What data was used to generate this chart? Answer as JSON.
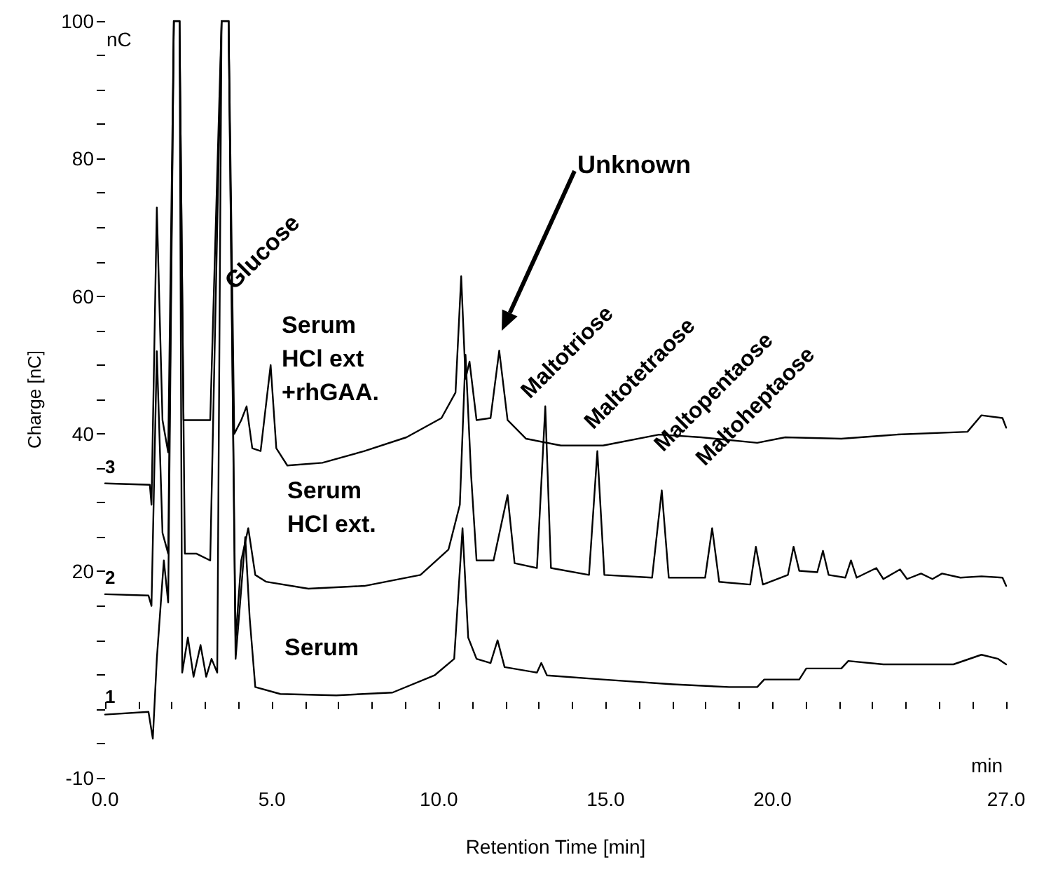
{
  "chart_data": {
    "type": "line",
    "xlabel": "Retention Time [min]",
    "ylabel": "Charge [nC]",
    "xlim": [
      0,
      27
    ],
    "ylim": [
      -10,
      100
    ],
    "xticks": [
      {
        "value": 0,
        "label": "0.0"
      },
      {
        "value": 1,
        "label": null
      },
      {
        "value": 2,
        "label": null
      },
      {
        "value": 3,
        "label": null
      },
      {
        "value": 4,
        "label": null
      },
      {
        "value": 5,
        "label": "5.0"
      },
      {
        "value": 6,
        "label": null
      },
      {
        "value": 7,
        "label": null
      },
      {
        "value": 8,
        "label": null
      },
      {
        "value": 9,
        "label": null
      },
      {
        "value": 10,
        "label": "10.0"
      },
      {
        "value": 11,
        "label": null
      },
      {
        "value": 12,
        "label": null
      },
      {
        "value": 13,
        "label": null
      },
      {
        "value": 14,
        "label": null
      },
      {
        "value": 15,
        "label": "15.0"
      },
      {
        "value": 16,
        "label": null
      },
      {
        "value": 17,
        "label": null
      },
      {
        "value": 18,
        "label": null
      },
      {
        "value": 19,
        "label": null
      },
      {
        "value": 20,
        "label": "20.0"
      },
      {
        "value": 21,
        "label": null
      },
      {
        "value": 22,
        "label": null
      },
      {
        "value": 23,
        "label": null
      },
      {
        "value": 24,
        "label": null
      },
      {
        "value": 25,
        "label": null
      },
      {
        "value": 26,
        "label": null
      },
      {
        "value": 27,
        "label": "27.0"
      }
    ],
    "yticks": [
      -10,
      {
        "value": -5,
        "label": null
      },
      {
        "value": 0,
        "label": null
      },
      {
        "value": 5,
        "label": null
      },
      {
        "value": 10,
        "label": null
      },
      {
        "value": 15,
        "label": null
      },
      20,
      {
        "value": 25,
        "label": null
      },
      {
        "value": 30,
        "label": null
      },
      {
        "value": 35,
        "label": null
      },
      40,
      {
        "value": 45,
        "label": null
      },
      {
        "value": 50,
        "label": null
      },
      {
        "value": 55,
        "label": null
      },
      60,
      {
        "value": 65,
        "label": null
      },
      {
        "value": 70,
        "label": null
      },
      {
        "value": 75,
        "label": null
      },
      80,
      {
        "value": 85,
        "label": null
      },
      {
        "value": 90,
        "label": null
      },
      {
        "value": 95,
        "label": null
      },
      100
    ],
    "marker": "none",
    "line_style": "solid",
    "series": [
      {
        "color": "#000000",
        "x": [
          0,
          1.34,
          1.39,
          1.55,
          1.72,
          1.89,
          2.06,
          2.23,
          2.35,
          2.73,
          3.15,
          3.49,
          3.7,
          3.87,
          4.08,
          4.24,
          4.41,
          4.66,
          4.96,
          5.13,
          5.46,
          6.51,
          7.77,
          9.03,
          10.08,
          10.5,
          10.67,
          10.8,
          10.92,
          11.13,
          11.55,
          11.81,
          12.06,
          12.61,
          13.66,
          14.92,
          16.6,
          17.86,
          19.54,
          20.38,
          22.06,
          23.74,
          25.84,
          26.26,
          26.89,
          27
        ],
        "values": [
          32.8,
          32.6,
          29.7,
          72.9,
          42,
          37.3,
          100,
          100,
          42,
          42,
          42,
          100,
          100,
          40,
          42,
          44,
          37.9,
          37.5,
          50,
          37.9,
          35.4,
          35.8,
          37.5,
          39.5,
          42.3,
          46,
          62.9,
          48,
          50.5,
          42,
          42.3,
          52.1,
          42,
          39.3,
          38.3,
          38.3,
          39.9,
          39.5,
          38.7,
          39.5,
          39.3,
          39.9,
          40.3,
          42.7,
          42.3,
          40.9
        ]
      },
      {
        "color": "#000000",
        "x": [
          0,
          1.3,
          1.39,
          1.55,
          1.72,
          1.89,
          2.06,
          2.23,
          2.39,
          2.73,
          3.15,
          3.49,
          3.7,
          3.91,
          4.08,
          4.29,
          4.5,
          4.83,
          6.09,
          7.77,
          9.45,
          10.29,
          10.63,
          10.8,
          10.97,
          11.13,
          11.64,
          12.06,
          12.27,
          12.94,
          13.19,
          13.36,
          14.5,
          14.75,
          14.96,
          16.39,
          16.68,
          16.89,
          17.98,
          18.19,
          18.4,
          19.33,
          19.5,
          19.71,
          20.46,
          20.63,
          20.8,
          21.34,
          21.51,
          21.68,
          22.18,
          22.35,
          22.52,
          23.11,
          23.32,
          23.82,
          24.03,
          24.45,
          24.79,
          25.08,
          25.63,
          26.26,
          26.89,
          27
        ],
        "values": [
          16.7,
          16.5,
          15,
          52,
          25.6,
          22.6,
          100,
          100,
          22.6,
          22.6,
          21.6,
          100,
          100,
          10,
          21.6,
          26.3,
          19.5,
          18.5,
          17.5,
          17.9,
          19.5,
          23.2,
          29.7,
          51.5,
          33.8,
          21.6,
          21.6,
          31.1,
          21.2,
          20.5,
          44,
          20.5,
          19.5,
          37.5,
          19.5,
          19.1,
          31.8,
          19.1,
          19.1,
          26.3,
          18.5,
          18.1,
          23.6,
          18.1,
          19.5,
          23.6,
          20.1,
          19.9,
          23,
          19.5,
          19.1,
          21.6,
          19.1,
          20.5,
          18.9,
          20.3,
          18.9,
          19.7,
          18.9,
          19.7,
          19.1,
          19.3,
          19.1,
          17.9
        ]
      },
      {
        "color": "#000000",
        "x": [
          0,
          1.3,
          1.43,
          1.55,
          1.76,
          1.89,
          2.06,
          2.23,
          2.31,
          2.48,
          2.65,
          2.86,
          3.03,
          3.19,
          3.36,
          3.49,
          3.7,
          3.91,
          4.08,
          4.2,
          4.33,
          4.5,
          5.25,
          6.93,
          8.61,
          9.87,
          10.46,
          10.71,
          10.88,
          11.13,
          11.55,
          11.76,
          11.97,
          12.94,
          13.07,
          13.24,
          14.92,
          17.02,
          18.7,
          19.54,
          19.75,
          20.8,
          21.01,
          22.06,
          22.27,
          23.32,
          25.42,
          26.26,
          26.76,
          27
        ],
        "values": [
          -0.8,
          -0.4,
          -4.3,
          7.3,
          21.6,
          15.5,
          100,
          100,
          5.3,
          10.4,
          4.7,
          9.3,
          4.7,
          7.3,
          5.3,
          100,
          100,
          7.3,
          17.5,
          25,
          13.4,
          3.2,
          2.2,
          2,
          2.4,
          4.9,
          7.3,
          26.3,
          10.4,
          7.3,
          6.7,
          10,
          6.1,
          5.3,
          6.7,
          4.9,
          4.3,
          3.6,
          3.2,
          3.2,
          4.3,
          4.3,
          5.9,
          5.9,
          7,
          6.5,
          6.5,
          7.9,
          7.3,
          6.5
        ]
      }
    ],
    "annotations": [
      "Glucose",
      {
        "text": "Serum\nHCl ext\n+rhGAA.",
        "x": 5.46,
        "y": 35.4
      },
      {
        "text": "Serum\nHCl ext.",
        "x": 6.09,
        "y": 17.5
      },
      {
        "text": "Serum",
        "x": 6.93,
        "y": 2
      },
      "Unknown",
      {
        "text": "Maltotriose",
        "x": 13.19,
        "y": 44
      },
      {
        "text": "Maltotetraose",
        "x": 14.75,
        "y": 37.5
      },
      {
        "text": "Maltopentaose",
        "x": 16.68,
        "y": 31.8
      },
      "Maltoheptaose",
      {
        "text": "3",
        "x": 0,
        "y": 32.8
      },
      {
        "text": "2",
        "x": 0,
        "y": 16.7
      },
      {
        "text": "1",
        "x": 0,
        "y": -0.8
      },
      "nC",
      "min"
    ]
  }
}
